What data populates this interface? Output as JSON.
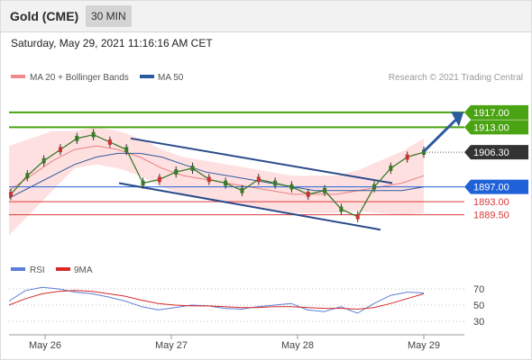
{
  "header": {
    "title": "Gold (CME)",
    "timeframe": "30 MIN"
  },
  "subtitle": "Saturday, May 29, 2021 11:16:16 AM CET",
  "legend": [
    {
      "label": "MA 20 + Bollinger Bands",
      "color": "#f08a8a"
    },
    {
      "label": "MA 50",
      "color": "#2b5a9e"
    }
  ],
  "copyright": "Research © 2021 Trading Central",
  "colors": {
    "resistance": "#4aa312",
    "pivot": "#1f62d8",
    "support": "#d93a3a",
    "last": "#333333",
    "candle": "#3a7a2a",
    "band": "#ffd6d6",
    "channel": "#2b4a8a"
  },
  "chart_data": [
    {
      "type": "line",
      "title": "",
      "x_labels": [
        "May 26",
        "May 27",
        "May 28",
        "May 29"
      ],
      "ylim": [
        1880,
        1923
      ],
      "levels": [
        {
          "value": 1917.0,
          "label": "1917.00",
          "role": "resistance"
        },
        {
          "value": 1913.0,
          "label": "1913.00",
          "role": "resistance"
        },
        {
          "value": 1906.3,
          "label": "1906.30",
          "role": "last"
        },
        {
          "value": 1897.0,
          "label": "1897.00",
          "role": "pivot"
        },
        {
          "value": 1893.0,
          "label": "1893.00",
          "role": "support"
        },
        {
          "value": 1889.5,
          "label": "1889.50",
          "role": "support"
        }
      ],
      "series": [
        {
          "name": "MA 20 + Bollinger Bands",
          "values": [
            1896,
            1900,
            1904,
            1907,
            1908,
            1907,
            1905,
            1902,
            1900,
            1899,
            1898,
            1897,
            1896,
            1895,
            1895,
            1895,
            1896,
            1897,
            1898,
            1900
          ]
        },
        {
          "name": "MA 50",
          "values": [
            1894,
            1897,
            1900,
            1903,
            1905,
            1906,
            1906,
            1905,
            1903,
            1901,
            1900,
            1899,
            1898,
            1897,
            1896,
            1896,
            1896,
            1896,
            1896,
            1897
          ]
        }
      ],
      "price": [
        1895,
        1900,
        1904,
        1907,
        1910,
        1911,
        1909,
        1907,
        1898,
        1899,
        1901,
        1902,
        1899,
        1898,
        1896,
        1899,
        1898,
        1897,
        1895,
        1896,
        1891,
        1889,
        1897,
        1902,
        1905,
        1906.3
      ]
    },
    {
      "type": "line",
      "title": "",
      "legend": [
        "RSI",
        "9MA"
      ],
      "yticks": [
        70,
        50,
        30
      ],
      "ylim": [
        20,
        80
      ],
      "series": [
        {
          "name": "RSI",
          "color": "#5b7fd6",
          "values": [
            55,
            68,
            72,
            70,
            66,
            64,
            60,
            55,
            48,
            44,
            47,
            50,
            49,
            46,
            45,
            48,
            50,
            52,
            44,
            42,
            48,
            40,
            52,
            62,
            66,
            65
          ]
        },
        {
          "name": "9MA",
          "color": "#d62a2a",
          "values": [
            50,
            58,
            64,
            67,
            68,
            67,
            64,
            61,
            56,
            52,
            50,
            49,
            49,
            48,
            47,
            47,
            48,
            48,
            47,
            46,
            46,
            45,
            47,
            52,
            58,
            64
          ]
        }
      ]
    }
  ]
}
